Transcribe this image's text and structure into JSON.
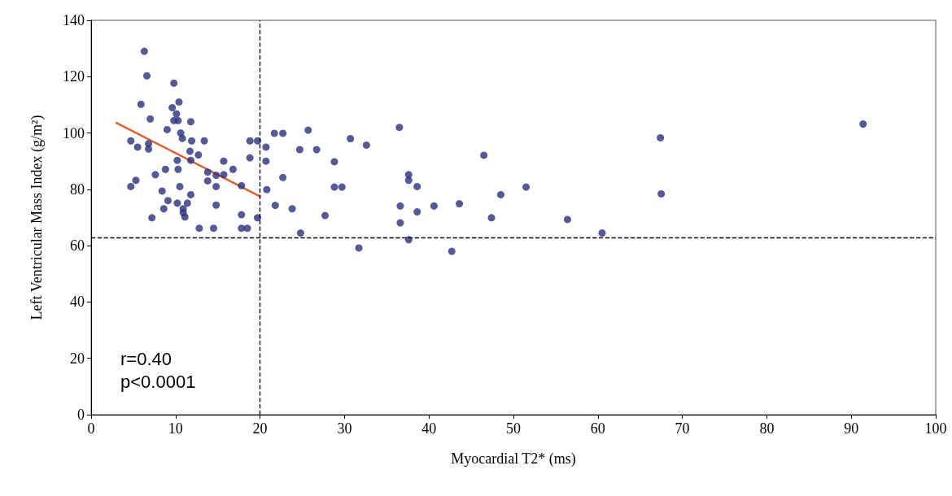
{
  "chart_data": {
    "type": "scatter",
    "xlabel": "Myocardial T2* (ms)",
    "ylabel": "Left Ventricular Mass Index (g/m²)",
    "xlim": [
      0,
      100
    ],
    "xticks": [
      0,
      10,
      20,
      30,
      40,
      50,
      60,
      70,
      80,
      90,
      100
    ],
    "ylim": [
      0,
      140
    ],
    "yticks": [
      0,
      20,
      40,
      60,
      80,
      100,
      120,
      140
    ],
    "marker": "circle",
    "series": [
      {
        "color": "#2b2f7f",
        "x": [
          6.3,
          6.6,
          9.8,
          5.9,
          7.0,
          10.4,
          9.6,
          10.1,
          9.8,
          10.3,
          11.8,
          9.0,
          10.6,
          10.8,
          4.7,
          5.5,
          6.8,
          6.8,
          11.9,
          13.4,
          11.7,
          12.7,
          10.2,
          11.8,
          15.7,
          8.8,
          10.3,
          16.8,
          7.6,
          13.8,
          14.8,
          15.7,
          5.3,
          4.7,
          13.8,
          10.5,
          14.8,
          17.8,
          8.4,
          11.8,
          9.1,
          10.2,
          11.4,
          14.8,
          8.6,
          10.9,
          10.9,
          11.1,
          7.2,
          17.8,
          19.7,
          12.8,
          14.5,
          17.8,
          18.5,
          18.8,
          19.7,
          18.8,
          20.7,
          20.7,
          20.8,
          21.8,
          21.7,
          22.7,
          25.7,
          24.7,
          26.7,
          22.7,
          28.8,
          30.7,
          32.6,
          28.8,
          29.7,
          23.8,
          27.7,
          24.8,
          36.5,
          37.6,
          37.6,
          38.6,
          36.6,
          36.6,
          38.6,
          40.6,
          43.6,
          37.6,
          31.7,
          42.7,
          46.5,
          48.5,
          51.5,
          47.4,
          56.4,
          60.5,
          67.4,
          67.5,
          91.4
        ],
        "values": [
          129,
          120.3,
          117.7,
          110.2,
          105,
          111,
          109,
          106.8,
          104.4,
          104.4,
          104,
          101.2,
          100,
          98.1,
          97.2,
          95,
          96.2,
          94.3,
          97.2,
          97.2,
          93.5,
          92.2,
          90.3,
          90.3,
          90,
          87.1,
          87.1,
          87.1,
          85.2,
          86.1,
          85,
          85.2,
          83.2,
          81,
          83,
          81,
          81,
          81.3,
          79.4,
          78.1,
          76,
          75.1,
          75.1,
          74.4,
          73.1,
          73.1,
          71.7,
          70.2,
          69.9,
          71,
          69.9,
          66.2,
          66.2,
          66.2,
          66.2,
          97.2,
          97.2,
          91.2,
          95,
          90,
          79.9,
          74.3,
          99.9,
          99.9,
          101,
          94.1,
          94.1,
          84.2,
          89.8,
          98,
          95.7,
          80.8,
          80.8,
          73.1,
          70.7,
          64.5,
          102,
          85.2,
          83.2,
          81,
          74.1,
          68.1,
          72,
          74.1,
          74.9,
          62.1,
          59.2,
          58,
          92.1,
          78.1,
          80.8,
          69.9,
          69.3,
          64.5,
          98.3,
          78.4,
          103.2
        ]
      },
      {
        "type": "line",
        "color": "#e0622a",
        "marker": "none",
        "x": [
          3,
          20
        ],
        "values": [
          103.6,
          77.5
        ]
      }
    ],
    "ref_lines": [
      {
        "axis": "x",
        "value": 20,
        "color": "#000000",
        "line_style": "dashed"
      },
      {
        "axis": "y",
        "value": 63,
        "color": "#000000",
        "line_style": "dashed"
      }
    ],
    "annotations": [
      "r=0.40",
      "p<0.0001"
    ]
  }
}
